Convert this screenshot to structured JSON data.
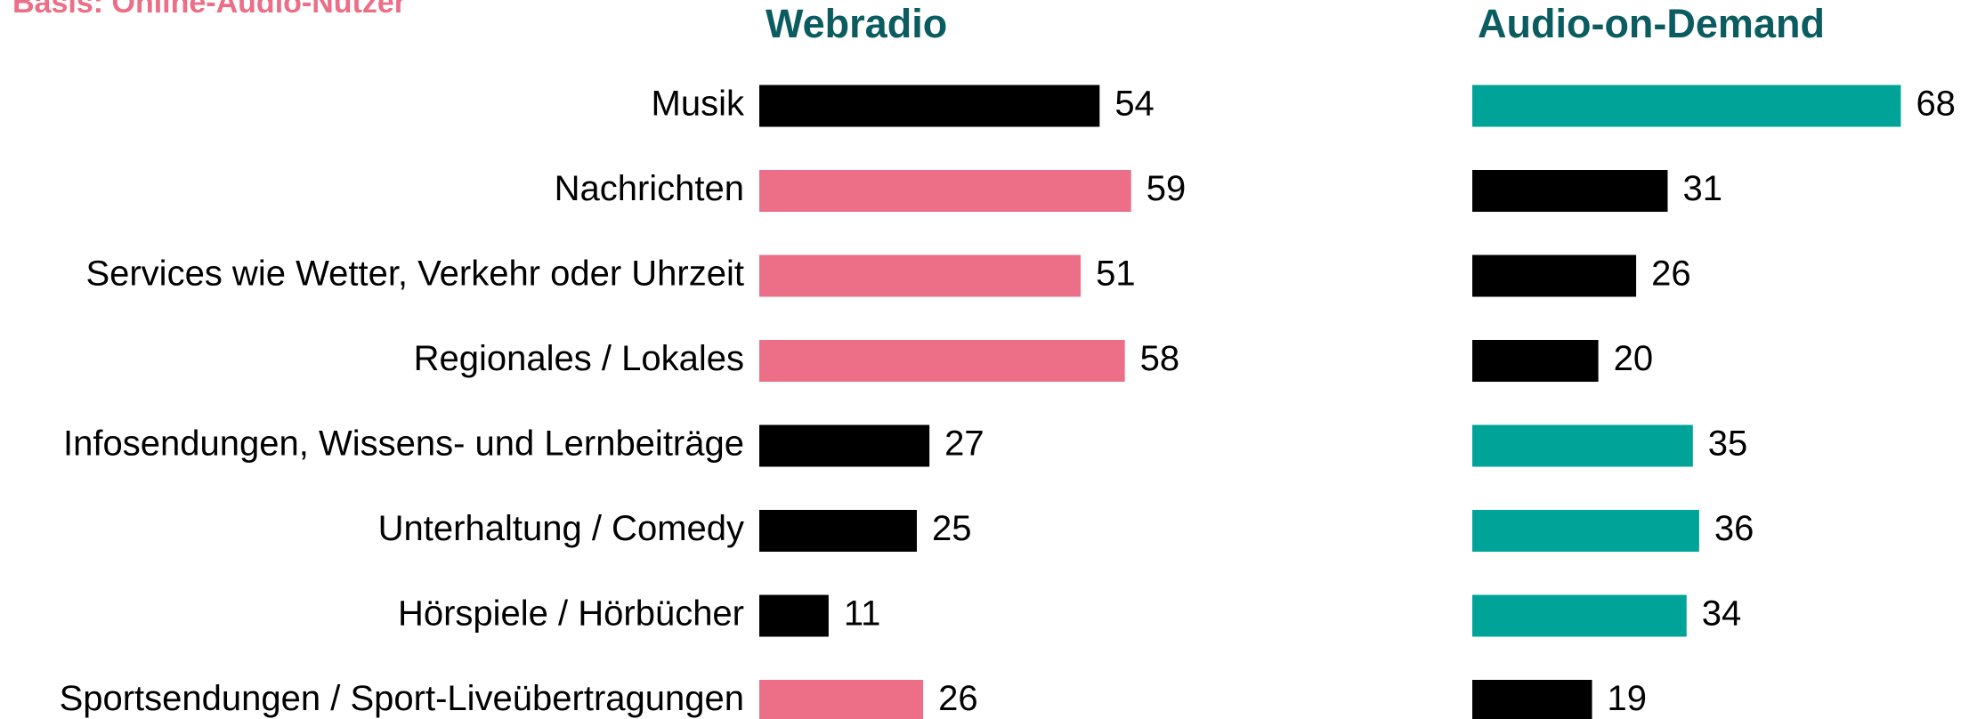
{
  "subtitle": "Basis: Online-Audio-Nutzer",
  "chart_data": [
    {
      "type": "bar",
      "orientation": "horizontal",
      "title": "Webradio",
      "categories": [
        "Musik",
        "Nachrichten",
        "Services wie Wetter, Verkehr oder Uhrzeit",
        "Regionales / Lokales",
        "Infosendungen, Wissens- und Lernbeiträge",
        "Unterhaltung / Comedy",
        "Hörspiele / Hörbücher",
        "Sportsendungen / Sport-Liveübertragungen"
      ],
      "values": [
        54,
        59,
        51,
        58,
        27,
        25,
        11,
        26
      ],
      "colors": [
        "#000000",
        "#ec6e87",
        "#ec6e87",
        "#ec6e87",
        "#000000",
        "#000000",
        "#000000",
        "#ec6e87"
      ]
    },
    {
      "type": "bar",
      "orientation": "horizontal",
      "title": "Audio-on-Demand",
      "values": [
        68,
        31,
        26,
        20,
        35,
        36,
        34,
        19
      ],
      "colors": [
        "#00a397",
        "#000000",
        "#000000",
        "#000000",
        "#00a397",
        "#00a397",
        "#00a397",
        "#000000"
      ]
    }
  ]
}
